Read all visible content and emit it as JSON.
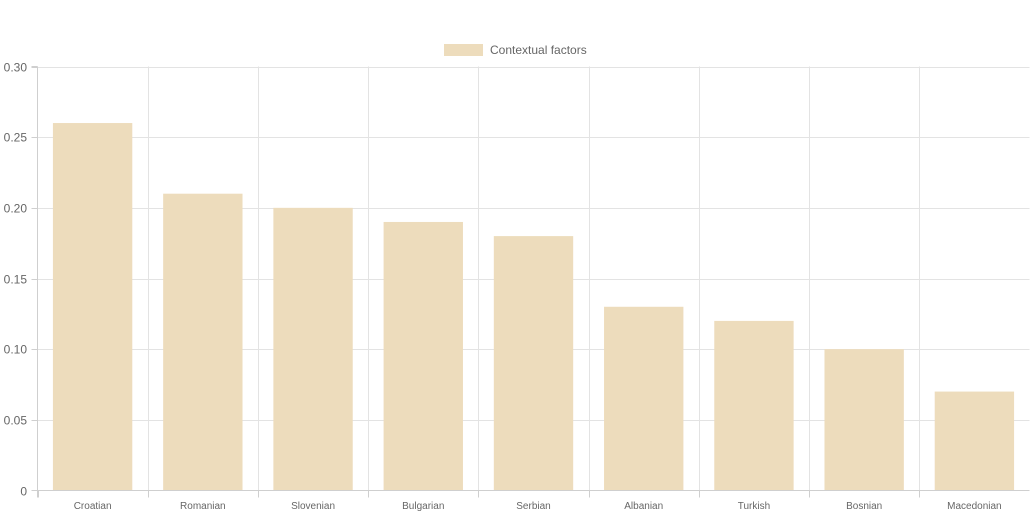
{
  "chart_data": {
    "type": "bar",
    "title": "",
    "xlabel": "",
    "ylabel": "",
    "categories": [
      "Croatian",
      "Romanian",
      "Slovenian",
      "Bulgarian",
      "Serbian",
      "Albanian",
      "Turkish",
      "Bosnian",
      "Macedonian"
    ],
    "series": [
      {
        "name": "Contextual factors",
        "color": "#eddcbc",
        "values": [
          0.26,
          0.21,
          0.2,
          0.19,
          0.18,
          0.13,
          0.12,
          0.1,
          0.07
        ]
      }
    ],
    "ylim": [
      0,
      0.3
    ],
    "yticks": [
      "0",
      "0.05",
      "0.10",
      "0.15",
      "0.20",
      "0.25",
      "0.30"
    ],
    "ytick_values": [
      0,
      0.05,
      0.1,
      0.15,
      0.2,
      0.25,
      0.3
    ],
    "grid": true,
    "legend_position": "top-center"
  }
}
